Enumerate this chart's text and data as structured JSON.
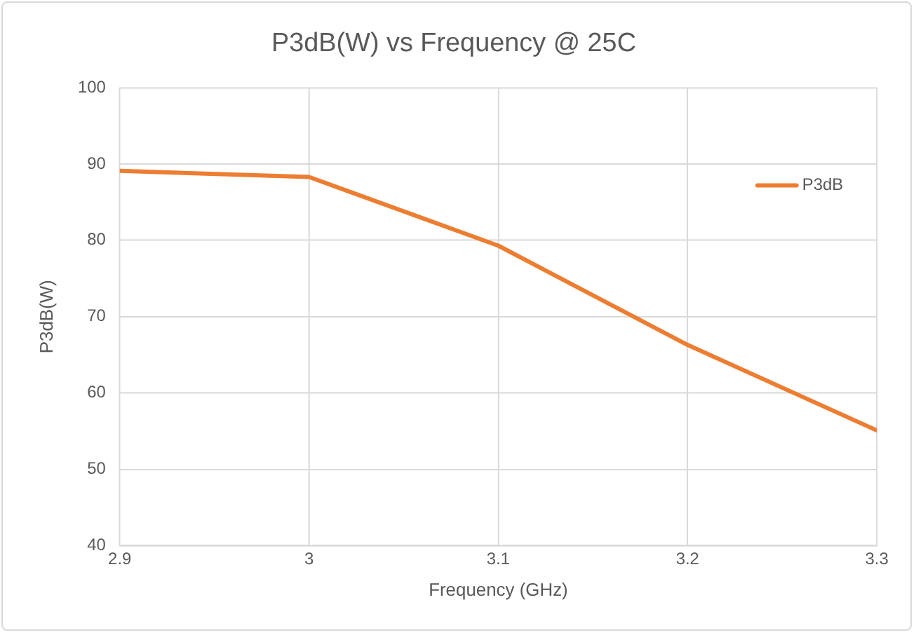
{
  "chart_data": {
    "type": "line",
    "title": "P3dB(W) vs Frequency @ 25C",
    "xlabel": "Frequency (GHz)",
    "ylabel": "P3dB(W)",
    "x": [
      2.9,
      3.0,
      3.1,
      3.2,
      3.3
    ],
    "series": [
      {
        "name": "P3dB",
        "color": "#ed7d31",
        "values": [
          89.1,
          88.3,
          79.3,
          66.3,
          55.1
        ]
      }
    ],
    "xlim": [
      2.9,
      3.3
    ],
    "xticks": [
      2.9,
      3,
      3.1,
      3.2,
      3.3
    ],
    "ylim": [
      40,
      100
    ],
    "yticks": [
      40,
      50,
      60,
      70,
      80,
      90,
      100
    ],
    "grid": true,
    "legend": "top right",
    "marker": "none",
    "line_style": "solid"
  }
}
